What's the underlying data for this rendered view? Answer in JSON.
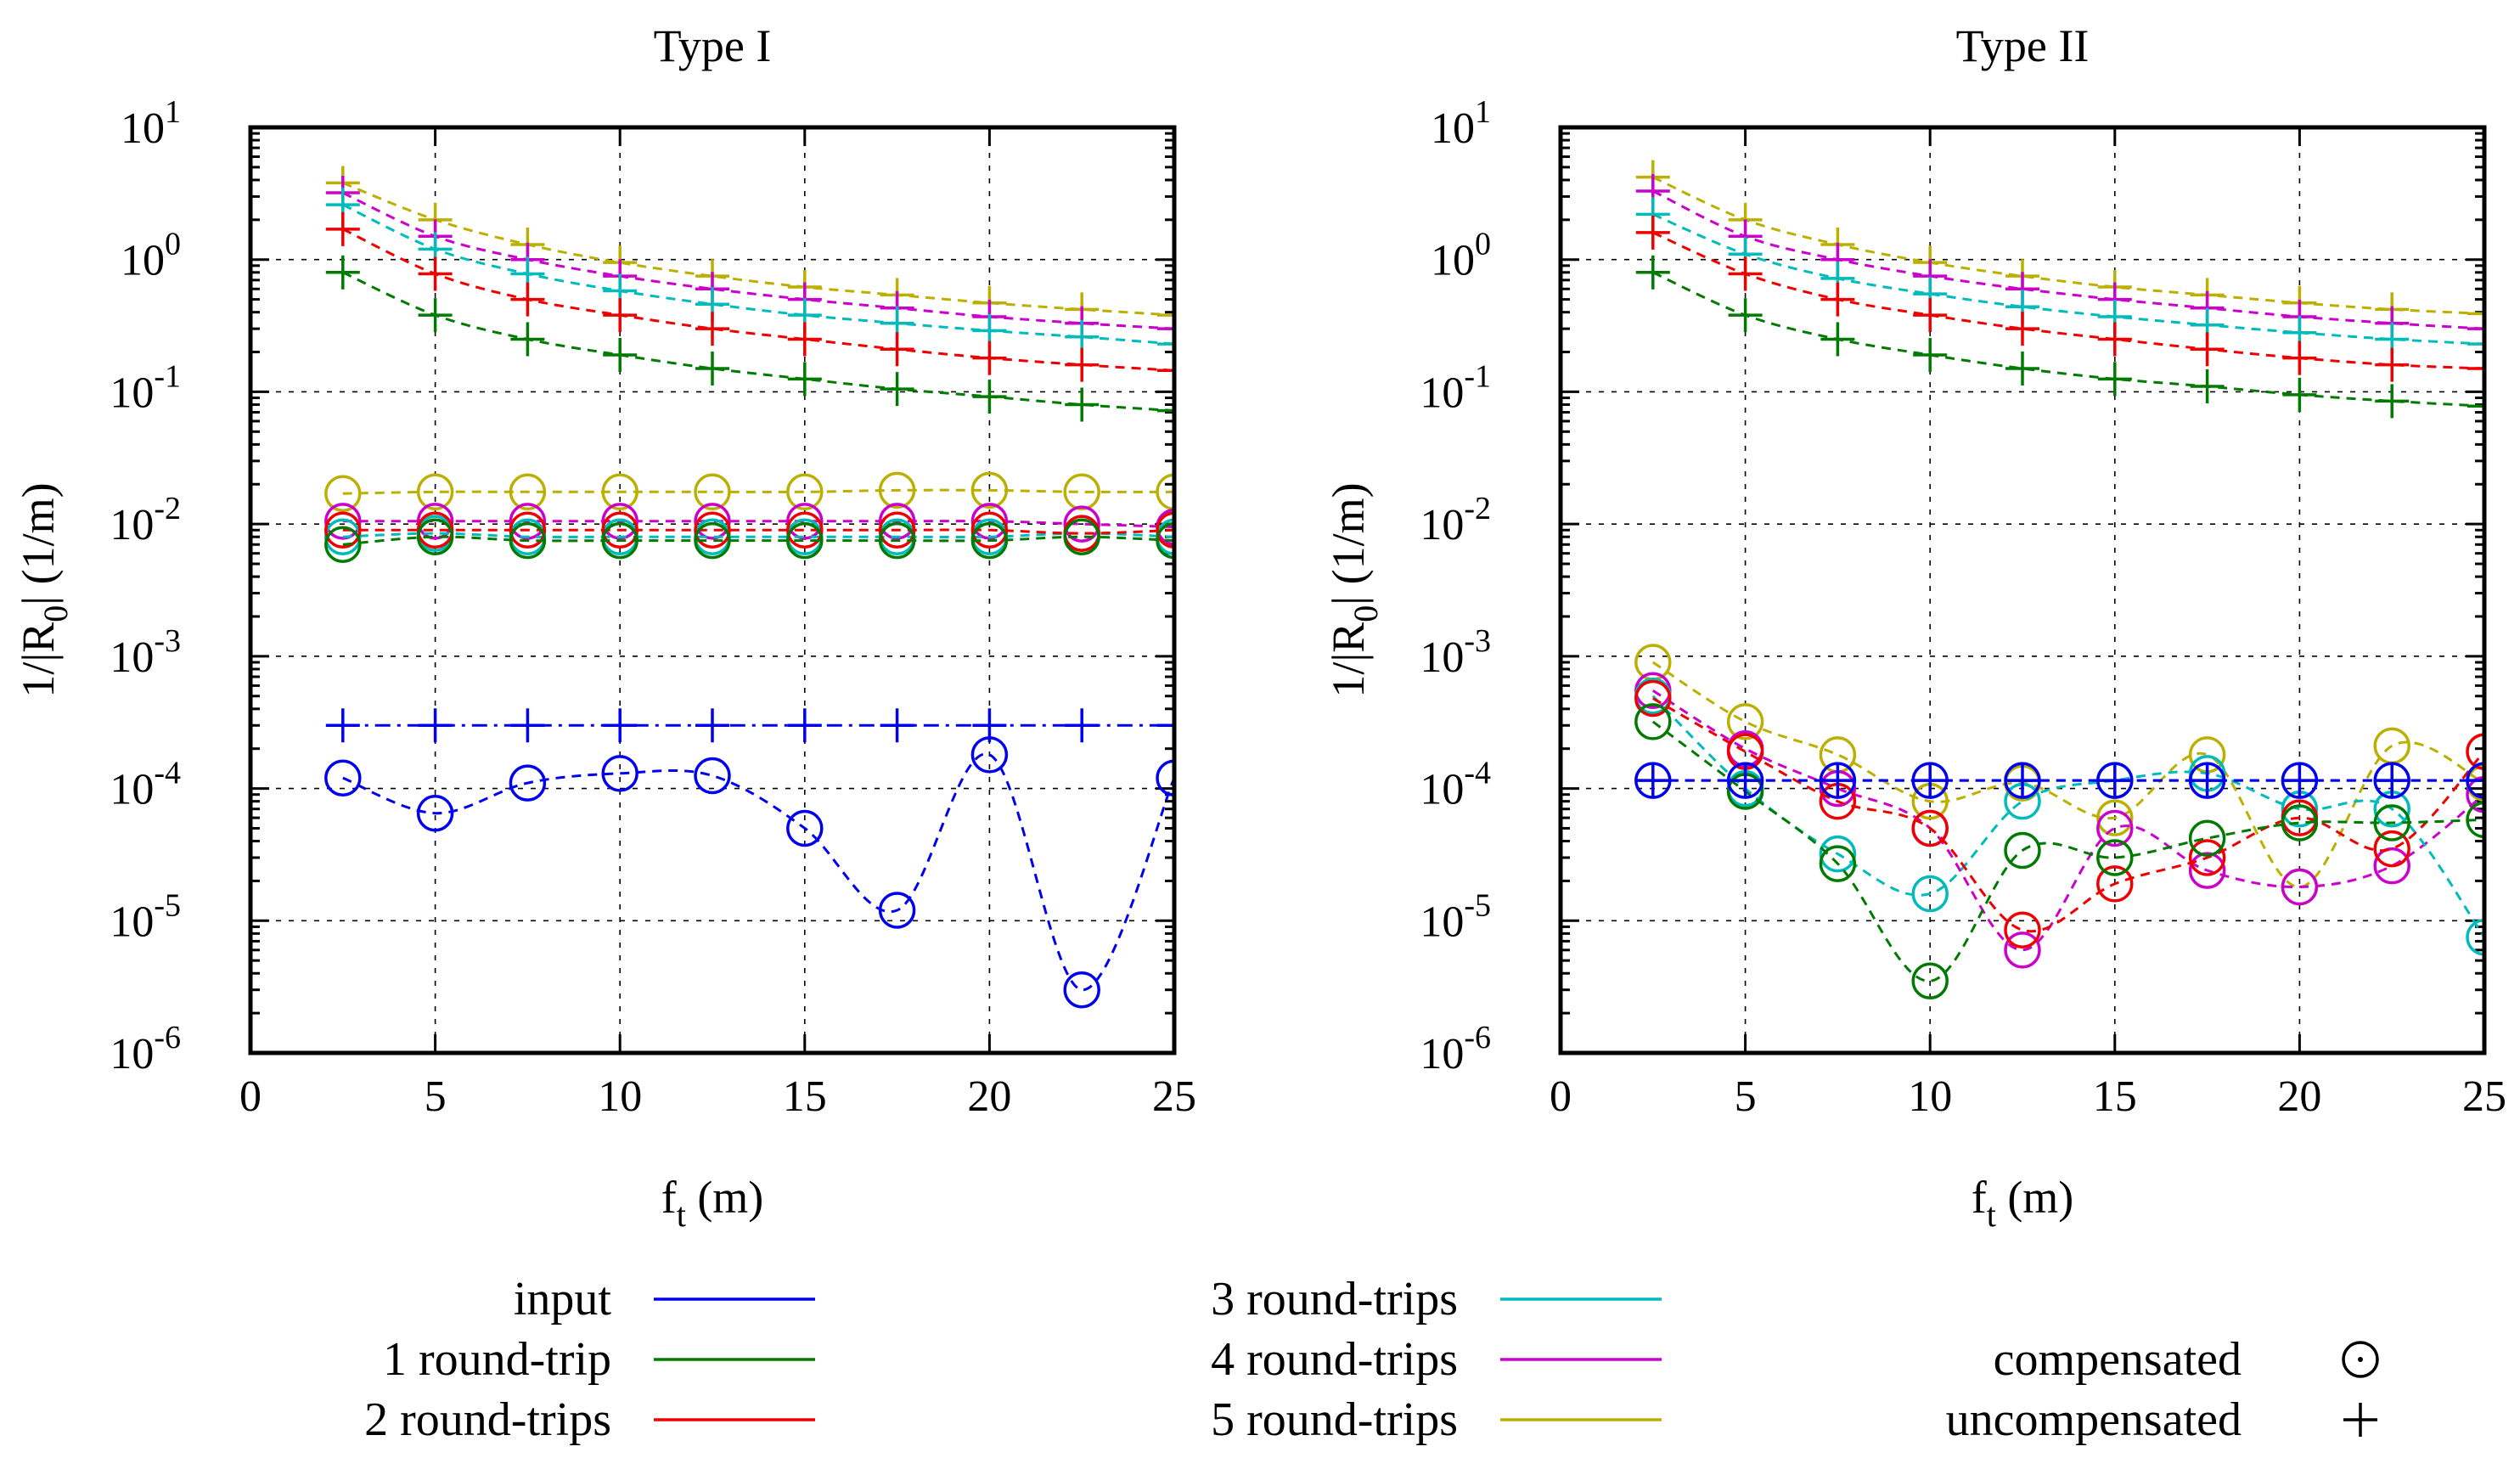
{
  "chart_data": [
    {
      "type": "line",
      "title": "Type I",
      "xlabel": "f_t (m)",
      "ylabel": "1/|R_0| (1/m)",
      "yscale": "log",
      "xlim": [
        0,
        25
      ],
      "ylim": [
        1e-06,
        10
      ],
      "grid": true,
      "x": [
        2.5,
        5,
        7.5,
        10,
        12.5,
        15,
        17.5,
        20,
        22.5,
        25
      ],
      "series": [
        {
          "name": "input",
          "marker": "compensated",
          "values": [
            0.00012,
            6.5e-05,
            0.00011,
            0.00013,
            0.000125,
            5e-05,
            1.2e-05,
            0.00018,
            3e-06,
            0.00012
          ]
        },
        {
          "name": "input",
          "marker": "uncompensated",
          "values": [
            0.0003,
            0.0003,
            0.0003,
            0.0003,
            0.0003,
            0.0003,
            0.0003,
            0.0003,
            0.0003,
            0.0003
          ]
        },
        {
          "name": "1 round-trip",
          "marker": "compensated",
          "values": [
            0.007,
            0.008,
            0.0075,
            0.0075,
            0.0075,
            0.0075,
            0.0075,
            0.0075,
            0.008,
            0.0075
          ]
        },
        {
          "name": "1 round-trip",
          "marker": "uncompensated",
          "values": [
            0.8,
            0.38,
            0.25,
            0.19,
            0.15,
            0.125,
            0.105,
            0.092,
            0.08,
            0.072
          ]
        },
        {
          "name": "2 round-trips",
          "marker": "compensated",
          "values": [
            0.009,
            0.009,
            0.009,
            0.009,
            0.009,
            0.009,
            0.009,
            0.009,
            0.0085,
            0.009
          ]
        },
        {
          "name": "2 round-trips",
          "marker": "uncompensated",
          "values": [
            1.7,
            0.78,
            0.5,
            0.38,
            0.3,
            0.25,
            0.21,
            0.18,
            0.16,
            0.145
          ]
        },
        {
          "name": "3 round-trips",
          "marker": "compensated",
          "values": [
            0.008,
            0.0085,
            0.008,
            0.008,
            0.008,
            0.008,
            0.008,
            0.008,
            0.0085,
            0.008
          ]
        },
        {
          "name": "3 round-trips",
          "marker": "uncompensated",
          "values": [
            2.6,
            1.2,
            0.78,
            0.58,
            0.46,
            0.38,
            0.33,
            0.29,
            0.26,
            0.23
          ]
        },
        {
          "name": "4 round-trips",
          "marker": "compensated",
          "values": [
            0.0105,
            0.0105,
            0.0105,
            0.0105,
            0.0105,
            0.0105,
            0.0105,
            0.0105,
            0.01,
            0.0095
          ]
        },
        {
          "name": "4 round-trips",
          "marker": "uncompensated",
          "values": [
            3.2,
            1.5,
            1.0,
            0.75,
            0.6,
            0.5,
            0.43,
            0.37,
            0.33,
            0.3
          ]
        },
        {
          "name": "5 round-trips",
          "marker": "compensated",
          "values": [
            0.017,
            0.0175,
            0.0175,
            0.0175,
            0.0175,
            0.0175,
            0.018,
            0.018,
            0.0175,
            0.0175
          ]
        },
        {
          "name": "5 round-trips",
          "marker": "uncompensated",
          "values": [
            3.8,
            2.0,
            1.3,
            0.95,
            0.75,
            0.62,
            0.54,
            0.47,
            0.42,
            0.38
          ]
        }
      ],
      "xticks": [
        "0",
        "5",
        "10",
        "15",
        "20",
        "25"
      ],
      "ytick_exponents": [
        "1",
        "0",
        "-1",
        "-2",
        "-3",
        "-4",
        "-5",
        "-6"
      ]
    },
    {
      "type": "line",
      "title": "Type II",
      "xlabel": "f_t (m)",
      "ylabel": "1/|R_0| (1/m)",
      "yscale": "log",
      "xlim": [
        0,
        25
      ],
      "ylim": [
        1e-06,
        10
      ],
      "grid": true,
      "x": [
        2.5,
        5,
        7.5,
        10,
        12.5,
        15,
        17.5,
        20,
        22.5,
        25
      ],
      "series": [
        {
          "name": "input",
          "marker": "compensated",
          "values": [
            0.000115,
            0.000115,
            0.000115,
            0.000115,
            0.000115,
            0.000115,
            0.000115,
            0.000115,
            0.000115,
            0.000115
          ]
        },
        {
          "name": "input",
          "marker": "uncompensated",
          "values": [
            0.000115,
            0.000115,
            0.000115,
            0.000115,
            0.000115,
            0.000115,
            0.000115,
            0.000115,
            0.000115,
            0.000115
          ]
        },
        {
          "name": "1 round-trip",
          "marker": "compensated",
          "values": [
            0.00032,
            9.5e-05,
            2.7e-05,
            3.5e-06,
            3.4e-05,
            3e-05,
            4.2e-05,
            5.5e-05,
            5.5e-05,
            5.8e-05
          ]
        },
        {
          "name": "1 round-trip",
          "marker": "uncompensated",
          "values": [
            0.8,
            0.38,
            0.25,
            0.19,
            0.15,
            0.125,
            0.11,
            0.095,
            0.085,
            0.078
          ]
        },
        {
          "name": "2 round-trips",
          "marker": "compensated",
          "values": [
            0.00048,
            0.00019,
            8e-05,
            5e-05,
            8.5e-06,
            1.9e-05,
            3e-05,
            6e-05,
            3.5e-05,
            0.00019
          ]
        },
        {
          "name": "2 round-trips",
          "marker": "uncompensated",
          "values": [
            1.6,
            0.78,
            0.5,
            0.38,
            0.3,
            0.25,
            0.21,
            0.18,
            0.16,
            0.15
          ]
        },
        {
          "name": "3 round-trips",
          "marker": "compensated",
          "values": [
            0.0005,
            0.0001,
            3.2e-05,
            1.6e-05,
            8e-05,
            0.000115,
            0.00013,
            7e-05,
            7e-05,
            7.5e-06
          ]
        },
        {
          "name": "3 round-trips",
          "marker": "uncompensated",
          "values": [
            2.2,
            1.1,
            0.72,
            0.55,
            0.44,
            0.37,
            0.32,
            0.28,
            0.25,
            0.23
          ]
        },
        {
          "name": "4 round-trips",
          "marker": "compensated",
          "values": [
            0.00055,
            0.0002,
            0.0001,
            5e-05,
            6e-06,
            5e-05,
            2.4e-05,
            1.8e-05,
            2.6e-05,
            9e-05
          ]
        },
        {
          "name": "4 round-trips",
          "marker": "uncompensated",
          "values": [
            3.3,
            1.5,
            1.0,
            0.75,
            0.6,
            0.5,
            0.43,
            0.37,
            0.33,
            0.3
          ]
        },
        {
          "name": "5 round-trips",
          "marker": "compensated",
          "values": [
            0.0009,
            0.00032,
            0.00018,
            8e-05,
            0.00011,
            6e-05,
            0.00018,
            1.8e-05,
            0.00021,
            0.00011
          ]
        },
        {
          "name": "5 round-trips",
          "marker": "uncompensated",
          "values": [
            4.2,
            2.0,
            1.3,
            0.95,
            0.75,
            0.62,
            0.54,
            0.47,
            0.42,
            0.39
          ]
        }
      ],
      "xticks": [
        "0",
        "5",
        "10",
        "15",
        "20",
        "25"
      ],
      "ytick_exponents": [
        "1",
        "0",
        "-1",
        "-2",
        "-3",
        "-4",
        "-5",
        "-6"
      ]
    }
  ],
  "colors": {
    "input": "#0000ee",
    "1 round-trip": "#007a00",
    "2 round-trips": "#ee0000",
    "3 round-trips": "#00bbbb",
    "4 round-trips": "#cc00cc",
    "5 round-trips": "#bbb000"
  },
  "axis_text": {
    "ylabel_main": "1/|R",
    "ylabel_sub": "0",
    "ylabel_tail": "| (1/m)",
    "xlabel_main": "f",
    "xlabel_sub": "t",
    "xlabel_tail": " (m)",
    "ytick_base": "10"
  },
  "legend": {
    "series": [
      "input",
      "1 round-trip",
      "2 round-trips",
      "3 round-trips",
      "4 round-trips",
      "5 round-trips"
    ],
    "markers": [
      "compensated",
      "uncompensated"
    ]
  }
}
